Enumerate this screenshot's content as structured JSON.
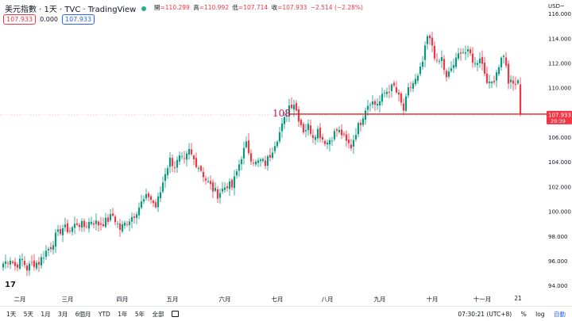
{
  "header": {
    "symbol_title": "美元指數 · 1天 · TVC · TradingView",
    "ohlc": [
      {
        "label": "開",
        "value": "=110.299"
      },
      {
        "label": "高",
        "value": "=110.992"
      },
      {
        "label": "低",
        "value": "=107.714"
      },
      {
        "label": "收",
        "value": "=107.933"
      },
      {
        "label": "",
        "value": "−2.514 (−2.28%)"
      }
    ],
    "chips": {
      "sell_price": "107.933",
      "spread": "0.000",
      "buy_price": "107.933"
    }
  },
  "axis_unit": "USD",
  "axis_unit_caret": "~",
  "annotation": {
    "text": "108",
    "color": "#c2185b"
  },
  "current_price": {
    "value": "107.933",
    "countdown": "29:39",
    "color": "#f23645"
  },
  "logo": "17",
  "footer": {
    "ranges": [
      "1天",
      "5天",
      "1月",
      "3月",
      "6個月",
      "YTD",
      "1年",
      "5年",
      "全部"
    ],
    "calendar_icon": "calendar-icon",
    "time": "07:30:21 (UTC+8)",
    "percent": "%",
    "log": "log",
    "auto": "自動"
  },
  "colors": {
    "up": "#089981",
    "down": "#f23645",
    "line": "#d32f2f"
  },
  "chart_data": {
    "type": "candlestick",
    "title": "美元指數 · 1天 · TVC",
    "y_ticks": [
      94,
      96,
      98,
      100,
      102,
      104,
      106,
      108,
      110,
      112,
      114,
      116
    ],
    "y_tick_labels": [
      "94.000",
      "96.000",
      "98.000",
      "100.000",
      "102.000",
      "104.000",
      "106.000",
      "108.000",
      "110.000",
      "112.000",
      "114.000",
      "116.000"
    ],
    "ylim": [
      93.4,
      117.0
    ],
    "x_ticks": [
      {
        "label": "二月",
        "idx": 7
      },
      {
        "label": "三月",
        "idx": 27
      },
      {
        "label": "四月",
        "idx": 50
      },
      {
        "label": "五月",
        "idx": 71
      },
      {
        "label": "六月",
        "idx": 93
      },
      {
        "label": "七月",
        "idx": 115
      },
      {
        "label": "八月",
        "idx": 136
      },
      {
        "label": "九月",
        "idx": 158
      },
      {
        "label": "十月",
        "idx": 180
      },
      {
        "label": "十一月",
        "idx": 201
      },
      {
        "label": "21",
        "idx": 216
      }
    ],
    "horizontal_line": 107.9,
    "close_key": [
      [
        0,
        95.8
      ],
      [
        3,
        96.2
      ],
      [
        5,
        95.6
      ],
      [
        8,
        96.1
      ],
      [
        10,
        95.4
      ],
      [
        12,
        95.8
      ],
      [
        15,
        95.9
      ],
      [
        18,
        96.8
      ],
      [
        20,
        97.2
      ],
      [
        22,
        98.0
      ],
      [
        25,
        98.7
      ],
      [
        28,
        98.5
      ],
      [
        31,
        99.1
      ],
      [
        34,
        98.8
      ],
      [
        37,
        99.3
      ],
      [
        40,
        99.0
      ],
      [
        43,
        99.2
      ],
      [
        46,
        99.7
      ],
      [
        49,
        98.6
      ],
      [
        52,
        99.2
      ],
      [
        55,
        99.8
      ],
      [
        58,
        100.7
      ],
      [
        61,
        101.3
      ],
      [
        64,
        100.4
      ],
      [
        66,
        101.6
      ],
      [
        68,
        103.2
      ],
      [
        70,
        104.2
      ],
      [
        72,
        103.7
      ],
      [
        74,
        104.3
      ],
      [
        76,
        104.0
      ],
      [
        78,
        104.9
      ],
      [
        80,
        104.2
      ],
      [
        83,
        103.4
      ],
      [
        85,
        102.6
      ],
      [
        88,
        101.8
      ],
      [
        90,
        101.4
      ],
      [
        92,
        101.8
      ],
      [
        94,
        102.2
      ],
      [
        96,
        102.0
      ],
      [
        98,
        103.2
      ],
      [
        100,
        104.5
      ],
      [
        102,
        105.4
      ],
      [
        104,
        104.4
      ],
      [
        106,
        103.9
      ],
      [
        108,
        104.1
      ],
      [
        110,
        103.9
      ],
      [
        112,
        104.6
      ],
      [
        114,
        105.6
      ],
      [
        116,
        106.4
      ],
      [
        118,
        107.4
      ],
      [
        120,
        108.6
      ],
      [
        122,
        108.8
      ],
      [
        124,
        107.6
      ],
      [
        126,
        106.6
      ],
      [
        128,
        106.9
      ],
      [
        130,
        106.2
      ],
      [
        132,
        106.6
      ],
      [
        134,
        105.9
      ],
      [
        136,
        105.6
      ],
      [
        138,
        106.1
      ],
      [
        140,
        106.6
      ],
      [
        142,
        106.3
      ],
      [
        144,
        105.6
      ],
      [
        146,
        105.3
      ],
      [
        148,
        106.5
      ],
      [
        150,
        107.3
      ],
      [
        152,
        108.4
      ],
      [
        154,
        109.0
      ],
      [
        156,
        108.7
      ],
      [
        158,
        108.9
      ],
      [
        160,
        109.6
      ],
      [
        162,
        109.9
      ],
      [
        164,
        110.1
      ],
      [
        166,
        109.2
      ],
      [
        168,
        108.2
      ],
      [
        170,
        109.8
      ],
      [
        172,
        110.4
      ],
      [
        174,
        110.8
      ],
      [
        176,
        112.1
      ],
      [
        178,
        114.1
      ],
      [
        180,
        113.5
      ],
      [
        182,
        111.9
      ],
      [
        184,
        112.4
      ],
      [
        186,
        110.7
      ],
      [
        188,
        111.6
      ],
      [
        190,
        112.2
      ],
      [
        192,
        113.1
      ],
      [
        194,
        112.9
      ],
      [
        196,
        112.7
      ],
      [
        198,
        111.9
      ],
      [
        200,
        112.6
      ],
      [
        202,
        111.3
      ],
      [
        204,
        110.2
      ],
      [
        206,
        110.8
      ],
      [
        208,
        111.9
      ],
      [
        210,
        112.8
      ],
      [
        212,
        110.5
      ],
      [
        214,
        110.3
      ],
      [
        216,
        110.4
      ],
      [
        217,
        107.9
      ]
    ]
  }
}
